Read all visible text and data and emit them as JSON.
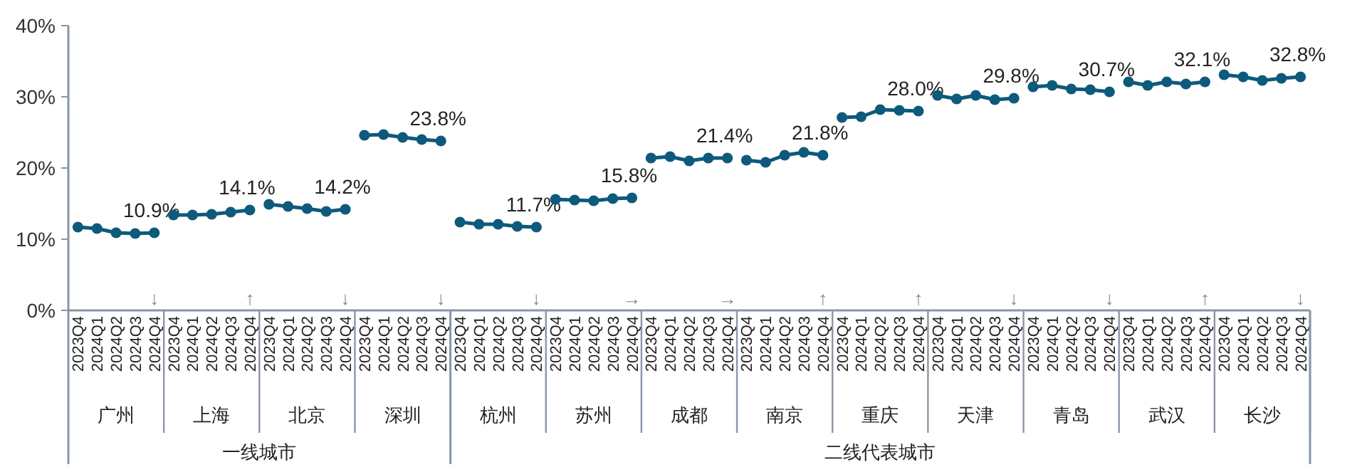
{
  "chart_data": {
    "type": "line",
    "marker": "circle",
    "grid": false,
    "categories": [
      "2023Q4",
      "2024Q1",
      "2024Q2",
      "2024Q3",
      "2024Q4",
      "2023Q4",
      "2024Q1",
      "2024Q2",
      "2024Q3",
      "2024Q4",
      "2023Q4",
      "2024Q1",
      "2024Q2",
      "2024Q3",
      "2024Q4",
      "2023Q4",
      "2024Q1",
      "2024Q2",
      "2024Q3",
      "2024Q4",
      "2023Q4",
      "2024Q1",
      "2024Q2",
      "2024Q3",
      "2024Q4",
      "2023Q4",
      "2024Q1",
      "2024Q2",
      "2024Q3",
      "2024Q4",
      "2023Q4",
      "2024Q1",
      "2024Q2",
      "2024Q3",
      "2024Q4",
      "2023Q4",
      "2024Q1",
      "2024Q2",
      "2024Q3",
      "2024Q4",
      "2023Q4",
      "2024Q1",
      "2024Q2",
      "2024Q3",
      "2024Q4",
      "2023Q4",
      "2024Q1",
      "2024Q2",
      "2024Q3",
      "2024Q4",
      "2023Q4",
      "2024Q1",
      "2024Q2",
      "2024Q3",
      "2024Q4",
      "2023Q4",
      "2024Q1",
      "2024Q2",
      "2024Q3",
      "2024Q4",
      "2023Q4",
      "2024Q1",
      "2024Q2",
      "2024Q3",
      "2024Q4"
    ],
    "ylim": [
      0,
      40
    ],
    "yticks": [
      {
        "value": 0,
        "label": "0%"
      },
      {
        "value": 10,
        "label": "10%"
      },
      {
        "value": 20,
        "label": "20%"
      },
      {
        "value": 30,
        "label": "30%"
      },
      {
        "value": 40,
        "label": "40%"
      }
    ],
    "series": [
      {
        "color": "#0e5a7c",
        "values": [
          11.7,
          11.5,
          10.9,
          10.8,
          10.9,
          null,
          null,
          null,
          null,
          null,
          null,
          null,
          null,
          null,
          null,
          null,
          null,
          null,
          null,
          null,
          null,
          null,
          null,
          null,
          null,
          null,
          null,
          null,
          null,
          null,
          null,
          null,
          null,
          null,
          null,
          null,
          null,
          null,
          null,
          null,
          null,
          null,
          null,
          null,
          null,
          null,
          null,
          null,
          null,
          null,
          null,
          null,
          null,
          null,
          null,
          null,
          null,
          null,
          null,
          null,
          null,
          null,
          null,
          null,
          null
        ],
        "value_labels": [
          null,
          null,
          null,
          null,
          "10.9%",
          null,
          null,
          null,
          null,
          null,
          null,
          null,
          null,
          null,
          null,
          null,
          null,
          null,
          null,
          null,
          null,
          null,
          null,
          null,
          null,
          null,
          null,
          null,
          null,
          null,
          null,
          null,
          null,
          null,
          null,
          null,
          null,
          null,
          null,
          null,
          null,
          null,
          null,
          null,
          null,
          null,
          null,
          null,
          null,
          null,
          null,
          null,
          null,
          null,
          null,
          null,
          null,
          null,
          null,
          null,
          null,
          null,
          null,
          null,
          null
        ]
      },
      {
        "color": "#0e5a7c",
        "values": [
          null,
          null,
          null,
          null,
          null,
          13.4,
          13.4,
          13.5,
          13.8,
          14.1,
          null,
          null,
          null,
          null,
          null,
          null,
          null,
          null,
          null,
          null,
          null,
          null,
          null,
          null,
          null,
          null,
          null,
          null,
          null,
          null,
          null,
          null,
          null,
          null,
          null,
          null,
          null,
          null,
          null,
          null,
          null,
          null,
          null,
          null,
          null,
          null,
          null,
          null,
          null,
          null,
          null,
          null,
          null,
          null,
          null,
          null,
          null,
          null,
          null,
          null,
          null,
          null,
          null,
          null,
          null
        ],
        "value_labels": [
          null,
          null,
          null,
          null,
          null,
          null,
          null,
          null,
          null,
          "14.1%",
          null,
          null,
          null,
          null,
          null,
          null,
          null,
          null,
          null,
          null,
          null,
          null,
          null,
          null,
          null,
          null,
          null,
          null,
          null,
          null,
          null,
          null,
          null,
          null,
          null,
          null,
          null,
          null,
          null,
          null,
          null,
          null,
          null,
          null,
          null,
          null,
          null,
          null,
          null,
          null,
          null,
          null,
          null,
          null,
          null,
          null,
          null,
          null,
          null,
          null,
          null,
          null,
          null,
          null,
          null
        ]
      },
      {
        "color": "#0e5a7c",
        "values": [
          null,
          null,
          null,
          null,
          null,
          null,
          null,
          null,
          null,
          null,
          14.9,
          14.6,
          14.3,
          13.9,
          14.2,
          null,
          null,
          null,
          null,
          null,
          null,
          null,
          null,
          null,
          null,
          null,
          null,
          null,
          null,
          null,
          null,
          null,
          null,
          null,
          null,
          null,
          null,
          null,
          null,
          null,
          null,
          null,
          null,
          null,
          null,
          null,
          null,
          null,
          null,
          null,
          null,
          null,
          null,
          null,
          null,
          null,
          null,
          null,
          null,
          null,
          null,
          null,
          null,
          null,
          null
        ],
        "value_labels": [
          null,
          null,
          null,
          null,
          null,
          null,
          null,
          null,
          null,
          null,
          null,
          null,
          null,
          null,
          "14.2%",
          null,
          null,
          null,
          null,
          null,
          null,
          null,
          null,
          null,
          null,
          null,
          null,
          null,
          null,
          null,
          null,
          null,
          null,
          null,
          null,
          null,
          null,
          null,
          null,
          null,
          null,
          null,
          null,
          null,
          null,
          null,
          null,
          null,
          null,
          null,
          null,
          null,
          null,
          null,
          null,
          null,
          null,
          null,
          null,
          null,
          null,
          null,
          null,
          null,
          null
        ]
      },
      {
        "color": "#0e5a7c",
        "values": [
          null,
          null,
          null,
          null,
          null,
          null,
          null,
          null,
          null,
          null,
          null,
          null,
          null,
          null,
          null,
          24.6,
          24.7,
          24.3,
          24.0,
          23.8,
          null,
          null,
          null,
          null,
          null,
          null,
          null,
          null,
          null,
          null,
          null,
          null,
          null,
          null,
          null,
          null,
          null,
          null,
          null,
          null,
          null,
          null,
          null,
          null,
          null,
          null,
          null,
          null,
          null,
          null,
          null,
          null,
          null,
          null,
          null,
          null,
          null,
          null,
          null,
          null,
          null,
          null,
          null,
          null,
          null
        ],
        "value_labels": [
          null,
          null,
          null,
          null,
          null,
          null,
          null,
          null,
          null,
          null,
          null,
          null,
          null,
          null,
          null,
          null,
          null,
          null,
          null,
          "23.8%",
          null,
          null,
          null,
          null,
          null,
          null,
          null,
          null,
          null,
          null,
          null,
          null,
          null,
          null,
          null,
          null,
          null,
          null,
          null,
          null,
          null,
          null,
          null,
          null,
          null,
          null,
          null,
          null,
          null,
          null,
          null,
          null,
          null,
          null,
          null,
          null,
          null,
          null,
          null,
          null,
          null,
          null,
          null,
          null,
          null
        ]
      },
      {
        "color": "#0e5a7c",
        "values": [
          null,
          null,
          null,
          null,
          null,
          null,
          null,
          null,
          null,
          null,
          null,
          null,
          null,
          null,
          null,
          null,
          null,
          null,
          null,
          null,
          12.4,
          12.1,
          12.1,
          11.8,
          11.7,
          null,
          null,
          null,
          null,
          null,
          null,
          null,
          null,
          null,
          null,
          null,
          null,
          null,
          null,
          null,
          null,
          null,
          null,
          null,
          null,
          null,
          null,
          null,
          null,
          null,
          null,
          null,
          null,
          null,
          null,
          null,
          null,
          null,
          null,
          null,
          null,
          null,
          null,
          null,
          null
        ],
        "value_labels": [
          null,
          null,
          null,
          null,
          null,
          null,
          null,
          null,
          null,
          null,
          null,
          null,
          null,
          null,
          null,
          null,
          null,
          null,
          null,
          null,
          null,
          null,
          null,
          null,
          "11.7%",
          null,
          null,
          null,
          null,
          null,
          null,
          null,
          null,
          null,
          null,
          null,
          null,
          null,
          null,
          null,
          null,
          null,
          null,
          null,
          null,
          null,
          null,
          null,
          null,
          null,
          null,
          null,
          null,
          null,
          null,
          null,
          null,
          null,
          null,
          null,
          null,
          null,
          null,
          null,
          null
        ]
      },
      {
        "color": "#0e5a7c",
        "values": [
          null,
          null,
          null,
          null,
          null,
          null,
          null,
          null,
          null,
          null,
          null,
          null,
          null,
          null,
          null,
          null,
          null,
          null,
          null,
          null,
          null,
          null,
          null,
          null,
          null,
          15.6,
          15.5,
          15.4,
          15.7,
          15.8,
          null,
          null,
          null,
          null,
          null,
          null,
          null,
          null,
          null,
          null,
          null,
          null,
          null,
          null,
          null,
          null,
          null,
          null,
          null,
          null,
          null,
          null,
          null,
          null,
          null,
          null,
          null,
          null,
          null,
          null,
          null,
          null,
          null,
          null,
          null
        ],
        "value_labels": [
          null,
          null,
          null,
          null,
          null,
          null,
          null,
          null,
          null,
          null,
          null,
          null,
          null,
          null,
          null,
          null,
          null,
          null,
          null,
          null,
          null,
          null,
          null,
          null,
          null,
          null,
          null,
          null,
          null,
          "15.8%",
          null,
          null,
          null,
          null,
          null,
          null,
          null,
          null,
          null,
          null,
          null,
          null,
          null,
          null,
          null,
          null,
          null,
          null,
          null,
          null,
          null,
          null,
          null,
          null,
          null,
          null,
          null,
          null,
          null,
          null,
          null,
          null,
          null,
          null,
          null
        ]
      },
      {
        "color": "#0e5a7c",
        "values": [
          null,
          null,
          null,
          null,
          null,
          null,
          null,
          null,
          null,
          null,
          null,
          null,
          null,
          null,
          null,
          null,
          null,
          null,
          null,
          null,
          null,
          null,
          null,
          null,
          null,
          null,
          null,
          null,
          null,
          null,
          21.4,
          21.6,
          21.0,
          21.4,
          21.4,
          null,
          null,
          null,
          null,
          null,
          null,
          null,
          null,
          null,
          null,
          null,
          null,
          null,
          null,
          null,
          null,
          null,
          null,
          null,
          null,
          null,
          null,
          null,
          null,
          null,
          null,
          null,
          null,
          null,
          null
        ],
        "value_labels": [
          null,
          null,
          null,
          null,
          null,
          null,
          null,
          null,
          null,
          null,
          null,
          null,
          null,
          null,
          null,
          null,
          null,
          null,
          null,
          null,
          null,
          null,
          null,
          null,
          null,
          null,
          null,
          null,
          null,
          null,
          null,
          null,
          null,
          null,
          "21.4%",
          null,
          null,
          null,
          null,
          null,
          null,
          null,
          null,
          null,
          null,
          null,
          null,
          null,
          null,
          null,
          null,
          null,
          null,
          null,
          null,
          null,
          null,
          null,
          null,
          null,
          null,
          null,
          null,
          null,
          null
        ]
      },
      {
        "color": "#0e5a7c",
        "values": [
          null,
          null,
          null,
          null,
          null,
          null,
          null,
          null,
          null,
          null,
          null,
          null,
          null,
          null,
          null,
          null,
          null,
          null,
          null,
          null,
          null,
          null,
          null,
          null,
          null,
          null,
          null,
          null,
          null,
          null,
          null,
          null,
          null,
          null,
          null,
          21.1,
          20.8,
          21.8,
          22.2,
          21.8,
          null,
          null,
          null,
          null,
          null,
          null,
          null,
          null,
          null,
          null,
          null,
          null,
          null,
          null,
          null,
          null,
          null,
          null,
          null,
          null,
          null,
          null,
          null,
          null,
          null
        ],
        "value_labels": [
          null,
          null,
          null,
          null,
          null,
          null,
          null,
          null,
          null,
          null,
          null,
          null,
          null,
          null,
          null,
          null,
          null,
          null,
          null,
          null,
          null,
          null,
          null,
          null,
          null,
          null,
          null,
          null,
          null,
          null,
          null,
          null,
          null,
          null,
          null,
          null,
          null,
          null,
          null,
          "21.8%",
          null,
          null,
          null,
          null,
          null,
          null,
          null,
          null,
          null,
          null,
          null,
          null,
          null,
          null,
          null,
          null,
          null,
          null,
          null,
          null,
          null,
          null,
          null,
          null,
          null
        ]
      },
      {
        "color": "#0e5a7c",
        "values": [
          null,
          null,
          null,
          null,
          null,
          null,
          null,
          null,
          null,
          null,
          null,
          null,
          null,
          null,
          null,
          null,
          null,
          null,
          null,
          null,
          null,
          null,
          null,
          null,
          null,
          null,
          null,
          null,
          null,
          null,
          null,
          null,
          null,
          null,
          null,
          null,
          null,
          null,
          null,
          null,
          27.1,
          27.2,
          28.2,
          28.1,
          28.0,
          null,
          null,
          null,
          null,
          null,
          null,
          null,
          null,
          null,
          null,
          null,
          null,
          null,
          null,
          null,
          null,
          null,
          null,
          null,
          null
        ],
        "value_labels": [
          null,
          null,
          null,
          null,
          null,
          null,
          null,
          null,
          null,
          null,
          null,
          null,
          null,
          null,
          null,
          null,
          null,
          null,
          null,
          null,
          null,
          null,
          null,
          null,
          null,
          null,
          null,
          null,
          null,
          null,
          null,
          null,
          null,
          null,
          null,
          null,
          null,
          null,
          null,
          null,
          null,
          null,
          null,
          null,
          "28.0%",
          null,
          null,
          null,
          null,
          null,
          null,
          null,
          null,
          null,
          null,
          null,
          null,
          null,
          null,
          null,
          null,
          null,
          null,
          null,
          null
        ]
      },
      {
        "color": "#0e5a7c",
        "values": [
          null,
          null,
          null,
          null,
          null,
          null,
          null,
          null,
          null,
          null,
          null,
          null,
          null,
          null,
          null,
          null,
          null,
          null,
          null,
          null,
          null,
          null,
          null,
          null,
          null,
          null,
          null,
          null,
          null,
          null,
          null,
          null,
          null,
          null,
          null,
          null,
          null,
          null,
          null,
          null,
          null,
          null,
          null,
          null,
          null,
          30.2,
          29.7,
          30.2,
          29.6,
          29.8,
          null,
          null,
          null,
          null,
          null,
          null,
          null,
          null,
          null,
          null,
          null,
          null,
          null,
          null,
          null
        ],
        "value_labels": [
          null,
          null,
          null,
          null,
          null,
          null,
          null,
          null,
          null,
          null,
          null,
          null,
          null,
          null,
          null,
          null,
          null,
          null,
          null,
          null,
          null,
          null,
          null,
          null,
          null,
          null,
          null,
          null,
          null,
          null,
          null,
          null,
          null,
          null,
          null,
          null,
          null,
          null,
          null,
          null,
          null,
          null,
          null,
          null,
          null,
          null,
          null,
          null,
          null,
          "29.8%",
          null,
          null,
          null,
          null,
          null,
          null,
          null,
          null,
          null,
          null,
          null,
          null,
          null,
          null,
          null
        ]
      },
      {
        "color": "#0e5a7c",
        "values": [
          null,
          null,
          null,
          null,
          null,
          null,
          null,
          null,
          null,
          null,
          null,
          null,
          null,
          null,
          null,
          null,
          null,
          null,
          null,
          null,
          null,
          null,
          null,
          null,
          null,
          null,
          null,
          null,
          null,
          null,
          null,
          null,
          null,
          null,
          null,
          null,
          null,
          null,
          null,
          null,
          null,
          null,
          null,
          null,
          null,
          null,
          null,
          null,
          null,
          null,
          31.4,
          31.6,
          31.1,
          31.0,
          30.7,
          null,
          null,
          null,
          null,
          null,
          null,
          null,
          null,
          null,
          null
        ],
        "value_labels": [
          null,
          null,
          null,
          null,
          null,
          null,
          null,
          null,
          null,
          null,
          null,
          null,
          null,
          null,
          null,
          null,
          null,
          null,
          null,
          null,
          null,
          null,
          null,
          null,
          null,
          null,
          null,
          null,
          null,
          null,
          null,
          null,
          null,
          null,
          null,
          null,
          null,
          null,
          null,
          null,
          null,
          null,
          null,
          null,
          null,
          null,
          null,
          null,
          null,
          null,
          null,
          null,
          null,
          null,
          "30.7%",
          null,
          null,
          null,
          null,
          null,
          null,
          null,
          null,
          null,
          null
        ]
      },
      {
        "color": "#0e5a7c",
        "values": [
          null,
          null,
          null,
          null,
          null,
          null,
          null,
          null,
          null,
          null,
          null,
          null,
          null,
          null,
          null,
          null,
          null,
          null,
          null,
          null,
          null,
          null,
          null,
          null,
          null,
          null,
          null,
          null,
          null,
          null,
          null,
          null,
          null,
          null,
          null,
          null,
          null,
          null,
          null,
          null,
          null,
          null,
          null,
          null,
          null,
          null,
          null,
          null,
          null,
          null,
          null,
          null,
          null,
          null,
          null,
          32.1,
          31.6,
          32.1,
          31.8,
          32.1,
          null,
          null,
          null,
          null,
          null
        ],
        "value_labels": [
          null,
          null,
          null,
          null,
          null,
          null,
          null,
          null,
          null,
          null,
          null,
          null,
          null,
          null,
          null,
          null,
          null,
          null,
          null,
          null,
          null,
          null,
          null,
          null,
          null,
          null,
          null,
          null,
          null,
          null,
          null,
          null,
          null,
          null,
          null,
          null,
          null,
          null,
          null,
          null,
          null,
          null,
          null,
          null,
          null,
          null,
          null,
          null,
          null,
          null,
          null,
          null,
          null,
          null,
          null,
          null,
          null,
          null,
          null,
          "32.1%",
          null,
          null,
          null,
          null,
          null
        ]
      },
      {
        "color": "#0e5a7c",
        "values": [
          null,
          null,
          null,
          null,
          null,
          null,
          null,
          null,
          null,
          null,
          null,
          null,
          null,
          null,
          null,
          null,
          null,
          null,
          null,
          null,
          null,
          null,
          null,
          null,
          null,
          null,
          null,
          null,
          null,
          null,
          null,
          null,
          null,
          null,
          null,
          null,
          null,
          null,
          null,
          null,
          null,
          null,
          null,
          null,
          null,
          null,
          null,
          null,
          null,
          null,
          null,
          null,
          null,
          null,
          null,
          null,
          null,
          null,
          null,
          null,
          33.1,
          32.8,
          32.3,
          32.6,
          32.8
        ],
        "value_labels": [
          null,
          null,
          null,
          null,
          null,
          null,
          null,
          null,
          null,
          null,
          null,
          null,
          null,
          null,
          null,
          null,
          null,
          null,
          null,
          null,
          null,
          null,
          null,
          null,
          null,
          null,
          null,
          null,
          null,
          null,
          null,
          null,
          null,
          null,
          null,
          null,
          null,
          null,
          null,
          null,
          null,
          null,
          null,
          null,
          null,
          null,
          null,
          null,
          null,
          null,
          null,
          null,
          null,
          null,
          null,
          null,
          null,
          null,
          null,
          null,
          null,
          null,
          null,
          null,
          "32.8%"
        ]
      }
    ],
    "annotations": [
      "↓",
      "↑",
      "↓",
      "↓",
      "↓",
      "→",
      "→",
      "↑",
      "↑",
      "↓",
      "↓",
      "↑",
      "↓",
      "广州",
      "上海",
      "北京",
      "深圳",
      "杭州",
      "苏州",
      "成都",
      "南京",
      "重庆",
      "天津",
      "青岛",
      "武汉",
      "长沙",
      "一线城市",
      "二线代表城市"
    ]
  }
}
